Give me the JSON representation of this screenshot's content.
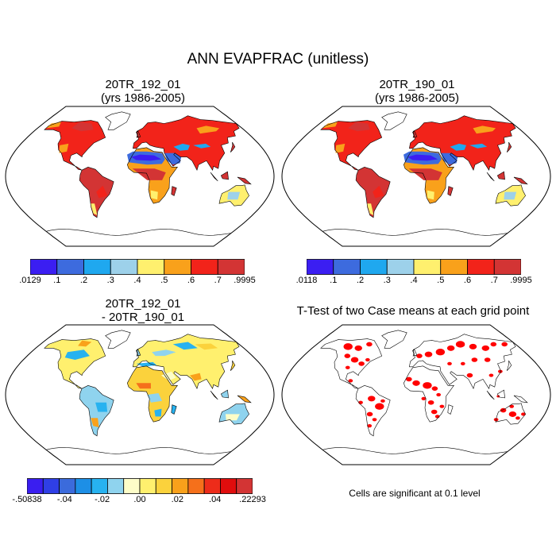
{
  "page_title": "ANN EVAPFRAC (unitless)",
  "panels": [
    {
      "title_line1": "20TR_192_01",
      "title_line2": "(yrs 1986-2005)"
    },
    {
      "title_line1": "20TR_190_01",
      "title_line2": "(yrs 1986-2005)"
    },
    {
      "title_line1": "20TR_192_01",
      "title_line2": "- 20TR_190_01"
    },
    {
      "title_line1": "T-Test of two Case means at each grid point",
      "title_line2": ""
    }
  ],
  "colorbars": {
    "case1": {
      "colors": [
        "#3b1ef2",
        "#3d6bde",
        "#1fa8ef",
        "#9dd1ea",
        "#fff06e",
        "#f9a11b",
        "#f2231a",
        "#d33434"
      ],
      "labels": [
        ".0129",
        ".1",
        ".2",
        ".3",
        ".4",
        ".5",
        ".6",
        ".7",
        ".9995"
      ]
    },
    "case2": {
      "colors": [
        "#3b1ef2",
        "#3d6bde",
        "#1fa8ef",
        "#9dd1ea",
        "#fff06e",
        "#f9a11b",
        "#f2231a",
        "#d33434"
      ],
      "labels": [
        ".0118",
        ".1",
        ".2",
        ".3",
        ".4",
        ".5",
        ".6",
        ".7",
        ".9995"
      ]
    },
    "diff": {
      "colors": [
        "#3a1ef0",
        "#2f3fe6",
        "#3b6bdc",
        "#1d8fe6",
        "#27b2f0",
        "#8fd3ee",
        "#fdfdc8",
        "#fff06e",
        "#fbd23c",
        "#f9a11b",
        "#f5701b",
        "#ed2c1a",
        "#e00d0d",
        "#d33434"
      ],
      "labels": [
        "-.50838",
        "-.04",
        "-.02",
        ".00",
        ".02",
        ".04",
        ".22293"
      ]
    }
  },
  "ttest_note": "Cells are significant at 0.1 level",
  "map_legend_colors": {
    "ocean": "#ffffff",
    "coast": "#000000",
    "significant": "#ff0000"
  }
}
